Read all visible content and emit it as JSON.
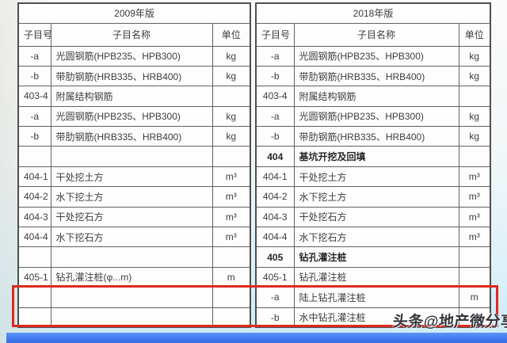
{
  "page": {
    "watermark": "头条@地产微分享",
    "colors": {
      "highlight_red": "#dd2a1f",
      "footer_blue": "#3f7ef0",
      "table_border": "#616161",
      "background_cyan": "#c9ebf6"
    }
  },
  "left_table": {
    "edition": "2009年版",
    "headers": {
      "no": "子目号",
      "name": "子目名称",
      "unit": "单位"
    },
    "rows": [
      {
        "no": "-a",
        "name": "光圆钢筋(HPB235、HPB300)",
        "unit": "kg",
        "bold": false
      },
      {
        "no": "-b",
        "name": "带肋钢筋(HRB335、HRB400)",
        "unit": "kg",
        "bold": false
      },
      {
        "no": "403-4",
        "name": "附属结构钢筋",
        "unit": "",
        "bold": false
      },
      {
        "no": "-a",
        "name": "光圆钢筋(HPB235、HPB300)",
        "unit": "kg",
        "bold": false
      },
      {
        "no": "-b",
        "name": "带肋钢筋(HRB335、HRB400)",
        "unit": "kg",
        "bold": false
      },
      {
        "no": "",
        "name": "",
        "unit": "",
        "bold": false
      },
      {
        "no": "404-1",
        "name": "干处挖土方",
        "unit": "m³",
        "bold": false
      },
      {
        "no": "404-2",
        "name": "水下挖土方",
        "unit": "m³",
        "bold": false
      },
      {
        "no": "404-3",
        "name": "干处挖石方",
        "unit": "m³",
        "bold": false
      },
      {
        "no": "404-4",
        "name": "水下挖石方",
        "unit": "m³",
        "bold": false
      },
      {
        "no": "",
        "name": "",
        "unit": "",
        "bold": false
      },
      {
        "no": "405-1",
        "name": "钻孔灌注桩(φ...m)",
        "unit": "m",
        "bold": false
      },
      {
        "no": "",
        "name": "",
        "unit": "",
        "bold": false
      },
      {
        "no": "",
        "name": "",
        "unit": "",
        "bold": false
      }
    ]
  },
  "right_table": {
    "edition": "2018年版",
    "headers": {
      "no": "子目号",
      "name": "子目名称",
      "unit": "单位"
    },
    "rows": [
      {
        "no": "-a",
        "name": "光圆钢筋(HPB235、HPB300)",
        "unit": "kg",
        "bold": false
      },
      {
        "no": "-b",
        "name": "带肋钢筋(HRB335、HRB400)",
        "unit": "kg",
        "bold": false
      },
      {
        "no": "403-4",
        "name": "附属结构钢筋",
        "unit": "",
        "bold": false
      },
      {
        "no": "-a",
        "name": "光圆钢筋(HPB235、HPB300)",
        "unit": "kg",
        "bold": false
      },
      {
        "no": "-b",
        "name": "带肋钢筋(HRB335、HRB400)",
        "unit": "kg",
        "bold": false
      },
      {
        "no": "404",
        "name": "基坑开挖及回填",
        "unit": "",
        "bold": true
      },
      {
        "no": "404-1",
        "name": "干处挖土方",
        "unit": "m³",
        "bold": false
      },
      {
        "no": "404-2",
        "name": "水下挖土方",
        "unit": "m³",
        "bold": false
      },
      {
        "no": "404-3",
        "name": "干处挖石方",
        "unit": "m³",
        "bold": false
      },
      {
        "no": "404-4",
        "name": "水下挖石方",
        "unit": "m³",
        "bold": false
      },
      {
        "no": "405",
        "name": "钻孔灌注桩",
        "unit": "",
        "bold": true
      },
      {
        "no": "405-1",
        "name": "钻孔灌注桩",
        "unit": "",
        "bold": false
      },
      {
        "no": "-a",
        "name": "陆上钻孔灌注桩",
        "unit": "m",
        "bold": false
      },
      {
        "no": "-b",
        "name": "水中钻孔灌注桩",
        "unit": "m",
        "bold": false
      }
    ]
  }
}
